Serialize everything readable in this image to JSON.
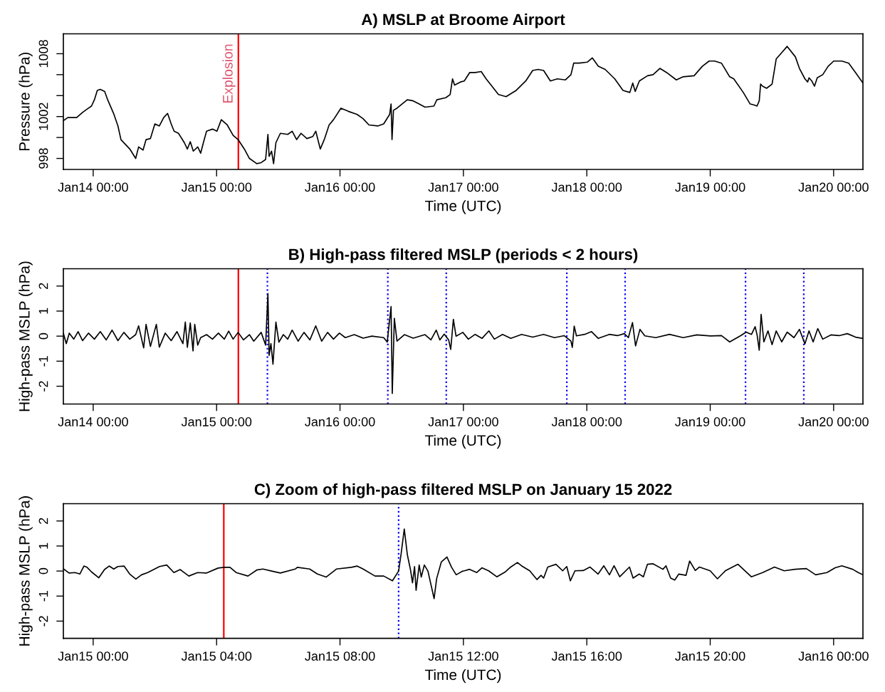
{
  "chart_data": [
    {
      "type": "line",
      "title": "A) MSLP at Broome Airport",
      "xlabel": "Time (UTC)",
      "ylabel": "Pressure (hPa)",
      "color": "#000000",
      "xlim": [
        "2022-01-13T18:12",
        "2022-01-20T05:42"
      ],
      "ylim": [
        996.95,
        1009.9
      ],
      "xticks": [
        {
          "value": "2022-01-14T00:00",
          "label": "Jan14 00:00"
        },
        {
          "value": "2022-01-15T00:00",
          "label": "Jan15 00:00"
        },
        {
          "value": "2022-01-16T00:00",
          "label": "Jan16 00:00"
        },
        {
          "value": "2022-01-17T00:00",
          "label": "Jan17 00:00"
        },
        {
          "value": "2022-01-18T00:00",
          "label": "Jan18 00:00"
        },
        {
          "value": "2022-01-19T00:00",
          "label": "Jan19 00:00"
        },
        {
          "value": "2022-01-20T00:00",
          "label": "Jan20 00:00"
        }
      ],
      "yticks": [
        998,
        {
          "value": 1000,
          "label": null
        },
        1002,
        {
          "value": 1004,
          "label": null
        },
        {
          "value": 1006,
          "label": null
        },
        1008
      ],
      "ref_lines": [
        {
          "axis": "x",
          "value": "2022-01-15T04:14",
          "label": "Explosion",
          "color": "#ff0000"
        }
      ],
      "x": [
        "2022-01-13T18:12",
        "2022-01-13T19:04",
        "2022-01-13T20:47",
        "2022-01-13T21:56",
        "2022-01-13T23:05",
        "2022-01-13T23:40",
        "2022-01-14T00:14",
        "2022-01-14T00:48",
        "2022-01-14T01:23",
        "2022-01-14T02:14",
        "2022-01-14T02:49",
        "2022-01-14T03:58",
        "2022-01-14T04:49",
        "2022-01-14T05:24",
        "2022-01-14T07:07",
        "2022-01-14T08:16",
        "2022-01-14T08:50",
        "2022-01-14T09:42",
        "2022-01-14T10:17",
        "2022-01-14T11:08",
        "2022-01-14T12:00",
        "2022-01-14T12:52",
        "2022-01-14T13:43",
        "2022-01-14T14:28",
        "2022-01-14T15:10",
        "2022-01-14T15:44",
        "2022-01-14T16:35",
        "2022-01-14T17:44",
        "2022-01-14T18:19",
        "2022-01-14T18:53",
        "2022-01-14T19:28",
        "2022-01-14T20:20",
        "2022-01-14T20:54",
        "2022-01-14T21:29",
        "2022-01-14T22:03",
        "2022-01-14T23:12",
        "2022-01-15T00:04",
        "2022-01-15T00:55",
        "2022-01-15T02:04",
        "2022-01-15T03:13",
        "2022-01-15T04:11",
        "2022-01-15T05:31",
        "2022-01-15T06:23",
        "2022-01-15T07:49",
        "2022-01-15T08:40",
        "2022-01-15T09:32",
        "2022-01-15T09:59",
        "2022-01-15T10:13",
        "2022-01-15T10:41",
        "2022-01-15T11:05",
        "2022-01-15T11:32",
        "2022-01-15T12:24",
        "2022-01-15T13:50",
        "2022-01-15T14:42",
        "2022-01-15T15:34",
        "2022-01-15T16:25",
        "2022-01-15T17:34",
        "2022-01-15T18:43",
        "2022-01-15T19:17",
        "2022-01-15T20:10",
        "2022-01-15T21:01",
        "2022-01-15T21:53",
        "2022-01-15T22:44",
        "2022-01-16T00:11",
        "2022-01-16T01:37",
        "2022-01-16T03:20",
        "2022-01-16T04:29",
        "2022-01-16T05:38",
        "2022-01-16T07:21",
        "2022-01-16T08:30",
        "2022-01-16T09:39",
        "2022-01-16T09:56",
        "2022-01-16T10:07",
        "2022-01-16T10:24",
        "2022-01-16T11:05",
        "2022-01-16T13:05",
        "2022-01-16T14:14",
        "2022-01-16T15:23",
        "2022-01-16T16:32",
        "2022-01-16T18:16",
        "2022-01-16T18:50",
        "2022-01-16T20:34",
        "2022-01-16T21:25",
        "2022-01-16T21:53",
        "2022-01-16T22:17",
        "2022-01-16T23:26",
        "2022-01-17T00:10",
        "2022-01-17T01:13",
        "2022-01-17T02:17",
        "2022-01-17T03:28",
        "2022-01-17T04:25",
        "2022-01-17T05:13",
        "2022-01-17T06:49",
        "2022-01-17T08:18",
        "2022-01-17T10:16",
        "2022-01-17T12:08",
        "2022-01-17T13:28",
        "2022-01-17T14:32",
        "2022-01-17T15:36",
        "2022-01-17T16:55",
        "2022-01-17T18:15",
        "2022-01-17T19:51",
        "2022-01-17T20:55",
        "2022-01-17T21:27",
        "2022-01-17T22:31",
        "2022-01-18T00:07",
        "2022-01-18T01:04",
        "2022-01-18T02:14",
        "2022-01-18T03:34",
        "2022-01-18T05:26",
        "2022-01-18T07:02",
        "2022-01-18T08:22",
        "2022-01-18T08:56",
        "2022-01-18T09:25",
        "2022-01-18T10:13",
        "2022-01-18T11:49",
        "2022-01-18T12:53",
        "2022-01-18T14:13",
        "2022-01-18T15:32",
        "2022-01-18T17:25",
        "2022-01-18T18:44",
        "2022-01-18T20:52",
        "2022-01-18T22:28",
        "2022-01-18T23:47",
        "2022-01-19T00:52",
        "2022-01-19T02:11",
        "2022-01-19T03:47",
        "2022-01-19T04:35",
        "2022-01-19T06:26",
        "2022-01-19T07:46",
        "2022-01-19T08:34",
        "2022-01-19T09:06",
        "2022-01-19T09:32",
        "2022-01-19T09:48",
        "2022-01-19T10:10",
        "2022-01-19T10:58",
        "2022-01-19T12:02",
        "2022-01-19T12:50",
        "2022-01-19T13:54",
        "2022-01-19T14:58",
        "2022-01-19T16:34",
        "2022-01-19T17:21",
        "2022-01-19T18:25",
        "2022-01-19T18:57",
        "2022-01-19T19:13",
        "2022-01-19T19:45",
        "2022-01-19T20:17",
        "2022-01-19T20:49",
        "2022-01-19T21:53",
        "2022-01-19T22:56",
        "2022-01-20T00:01",
        "2022-01-20T01:36",
        "2022-01-20T02:56",
        "2022-01-20T04:16",
        "2022-01-20T05:42"
      ],
      "values": [
        1001.6,
        1001.9,
        1001.9,
        1002.4,
        1002.8,
        1003.0,
        1003.6,
        1004.5,
        1004.6,
        1004.4,
        1003.6,
        1002.3,
        1001.1,
        999.8,
        998.9,
        998.0,
        999.1,
        998.8,
        999.8,
        999.9,
        1001.3,
        1001.1,
        1001.9,
        1002.3,
        1001.3,
        1000.6,
        1000.4,
        999.5,
        998.9,
        999.6,
        998.7,
        999.1,
        998.5,
        999.6,
        1000.6,
        1000.8,
        1000.6,
        1001.7,
        1001.2,
        1000.2,
        999.8,
        998.8,
        998.0,
        997.5,
        997.6,
        997.9,
        1000.3,
        998.2,
        998.7,
        997.5,
        999.5,
        1000.4,
        1000.3,
        1000.6,
        999.8,
        1000.4,
        999.9,
        1000.1,
        1000.6,
        998.9,
        999.9,
        1001.2,
        1001.7,
        1002.8,
        1002.5,
        1002.2,
        1001.8,
        1001.2,
        1001.1,
        1001.3,
        1002.2,
        1003.2,
        999.8,
        1002.6,
        1002.8,
        1003.6,
        1003.5,
        1003.2,
        1002.9,
        1003.0,
        1003.6,
        1003.8,
        1004.1,
        1005.6,
        1005.0,
        1005.3,
        1005.4,
        1006.2,
        1006.2,
        1006.3,
        1005.6,
        1005.1,
        1004.1,
        1003.9,
        1004.5,
        1005.4,
        1006.4,
        1006.5,
        1006.4,
        1005.4,
        1005.6,
        1005.5,
        1006.0,
        1007.1,
        1007.1,
        1007.2,
        1007.6,
        1006.8,
        1006.5,
        1005.6,
        1004.5,
        1004.3,
        1005.2,
        1004.4,
        1005.4,
        1005.9,
        1006.0,
        1006.6,
        1006.2,
        1005.5,
        1005.8,
        1005.9,
        1006.8,
        1007.3,
        1007.3,
        1007.1,
        1005.8,
        1005.6,
        1004.3,
        1003.2,
        1003.1,
        1003.0,
        1003.5,
        1005.1,
        1004.9,
        1004.7,
        1005.1,
        1007.5,
        1008.1,
        1008.7,
        1007.7,
        1006.6,
        1005.6,
        1005.3,
        1005.7,
        1005.4,
        1004.9,
        1005.7,
        1006.0,
        1006.8,
        1007.3,
        1007.3,
        1007.1,
        1006.2,
        1005.2
      ]
    },
    {
      "type": "line",
      "title": "B) High-pass filtered MSLP (periods < 2 hours)",
      "xlabel": "Time (UTC)",
      "ylabel": "High-pass MSLP (hPa)",
      "color": "#000000",
      "xlim": [
        "2022-01-13T18:12",
        "2022-01-20T05:42"
      ],
      "ylim": [
        -2.71,
        2.69
      ],
      "xticks": [
        {
          "value": "2022-01-14T00:00",
          "label": "Jan14 00:00"
        },
        {
          "value": "2022-01-15T00:00",
          "label": "Jan15 00:00"
        },
        {
          "value": "2022-01-16T00:00",
          "label": "Jan16 00:00"
        },
        {
          "value": "2022-01-17T00:00",
          "label": "Jan17 00:00"
        },
        {
          "value": "2022-01-18T00:00",
          "label": "Jan18 00:00"
        },
        {
          "value": "2022-01-19T00:00",
          "label": "Jan19 00:00"
        },
        {
          "value": "2022-01-20T00:00",
          "label": "Jan20 00:00"
        }
      ],
      "yticks": [
        -2,
        -1,
        0,
        1,
        2
      ],
      "ref_lines": [
        {
          "axis": "x",
          "value": "2022-01-15T04:14",
          "color": "#ff0000"
        },
        {
          "axis": "x",
          "value": "2022-01-15T09:53",
          "color": "#0000ff",
          "line_style": "dotted"
        },
        {
          "axis": "x",
          "value": "2022-01-16T09:18",
          "color": "#0000ff",
          "line_style": "dotted"
        },
        {
          "axis": "x",
          "value": "2022-01-16T20:40",
          "color": "#0000ff",
          "line_style": "dotted"
        },
        {
          "axis": "x",
          "value": "2022-01-17T20:07",
          "color": "#0000ff",
          "line_style": "dotted"
        },
        {
          "axis": "x",
          "value": "2022-01-18T07:27",
          "color": "#0000ff",
          "line_style": "dotted"
        },
        {
          "axis": "x",
          "value": "2022-01-19T06:52",
          "color": "#0000ff",
          "line_style": "dotted"
        },
        {
          "axis": "x",
          "value": "2022-01-19T18:12",
          "color": "#0000ff",
          "line_style": "dotted"
        }
      ],
      "x": [
        "2022-01-13T18:12",
        "2022-01-13T18:46",
        "2022-01-13T19:21",
        "2022-01-13T20:13",
        "2022-01-13T21:04",
        "2022-01-13T21:56",
        "2022-01-13T23:05",
        "2022-01-14T00:14",
        "2022-01-14T01:23",
        "2022-01-14T02:32",
        "2022-01-14T03:40",
        "2022-01-14T04:49",
        "2022-01-14T05:58",
        "2022-01-14T07:07",
        "2022-01-14T08:16",
        "2022-01-14T08:50",
        "2022-01-14T09:49",
        "2022-01-14T10:17",
        "2022-01-14T11:08",
        "2022-01-14T12:17",
        "2022-01-14T12:52",
        "2022-01-14T14:01",
        "2022-01-14T15:10",
        "2022-01-14T16:18",
        "2022-01-14T17:27",
        "2022-01-14T17:55",
        "2022-01-14T18:19",
        "2022-01-14T18:53",
        "2022-01-14T19:25",
        "2022-01-14T19:45",
        "2022-01-14T20:20",
        "2022-01-14T20:54",
        "2022-01-14T22:03",
        "2022-01-14T23:12",
        "2022-01-15T00:21",
        "2022-01-15T01:30",
        "2022-01-15T02:21",
        "2022-01-15T03:13",
        "2022-01-15T04:11",
        "2022-01-15T05:14",
        "2022-01-15T06:23",
        "2022-01-15T07:14",
        "2022-01-15T08:40",
        "2022-01-15T09:32",
        "2022-01-15T09:59",
        "2022-01-15T10:13",
        "2022-01-15T10:34",
        "2022-01-15T10:58",
        "2022-01-15T11:32",
        "2022-01-15T12:07",
        "2022-01-15T12:59",
        "2022-01-15T13:50",
        "2022-01-15T14:42",
        "2022-01-15T15:51",
        "2022-01-15T17:00",
        "2022-01-15T18:09",
        "2022-01-15T19:17",
        "2022-01-15T20:26",
        "2022-01-15T21:35",
        "2022-01-15T22:44",
        "2022-01-15T23:53",
        "2022-01-16T01:02",
        "2022-01-16T02:46",
        "2022-01-16T04:29",
        "2022-01-16T06:12",
        "2022-01-16T08:30",
        "2022-01-16T09:11",
        "2022-01-16T09:56",
        "2022-01-16T10:10",
        "2022-01-16T10:34",
        "2022-01-16T11:05",
        "2022-01-16T12:31",
        "2022-01-16T14:14",
        "2022-01-16T16:32",
        "2022-01-16T17:41",
        "2022-01-16T18:43",
        "2022-01-16T19:25",
        "2022-01-16T20:16",
        "2022-01-16T21:08",
        "2022-01-16T21:32",
        "2022-01-16T22:03",
        "2022-01-16T22:34",
        "2022-01-16T23:53",
        "2022-01-17T00:58",
        "2022-01-17T02:17",
        "2022-01-17T03:37",
        "2022-01-17T04:57",
        "2022-01-17T06:01",
        "2022-01-17T07:37",
        "2022-01-17T09:13",
        "2022-01-17T11:20",
        "2022-01-17T13:28",
        "2022-01-17T15:35",
        "2022-01-17T17:43",
        "2022-01-17T19:35",
        "2022-01-17T20:55",
        "2022-01-17T21:11",
        "2022-01-17T21:33",
        "2022-01-17T21:59",
        "2022-01-17T23:35",
        "2022-01-18T00:55",
        "2022-01-18T02:14",
        "2022-01-18T04:22",
        "2022-01-18T05:58",
        "2022-01-18T07:17",
        "2022-01-18T08:05",
        "2022-01-18T08:53",
        "2022-01-18T09:29",
        "2022-01-18T10:20",
        "2022-01-18T11:17",
        "2022-01-18T13:25",
        "2022-01-18T16:04",
        "2022-01-18T18:44",
        "2022-01-18T21:24",
        "2022-01-19T00:04",
        "2022-01-19T02:11",
        "2022-01-19T03:47",
        "2022-01-19T05:55",
        "2022-01-19T06:59",
        "2022-01-19T08:02",
        "2022-01-19T08:44",
        "2022-01-19T09:07",
        "2022-01-19T09:32",
        "2022-01-19T09:54",
        "2022-01-19T10:26",
        "2022-01-19T11:14",
        "2022-01-19T12:02",
        "2022-01-19T12:50",
        "2022-01-19T13:54",
        "2022-01-19T14:58",
        "2022-01-19T16:17",
        "2022-01-19T17:21",
        "2022-01-19T18:25",
        "2022-01-19T19:13",
        "2022-01-19T20:01",
        "2022-01-19T20:55",
        "2022-01-19T21:53",
        "2022-01-19T23:28",
        "2022-01-20T01:04",
        "2022-01-20T02:40",
        "2022-01-20T04:16",
        "2022-01-20T05:42"
      ],
      "values": [
        0.12,
        -0.3,
        0.12,
        -0.12,
        0.18,
        -0.18,
        0.12,
        -0.12,
        0.18,
        -0.15,
        0.24,
        -0.18,
        0.15,
        -0.12,
        0.06,
        0.41,
        -0.47,
        0.47,
        -0.41,
        0.47,
        -0.44,
        0.12,
        -0.18,
        0.18,
        -0.3,
        0.56,
        -0.45,
        0.53,
        -0.59,
        0.47,
        -0.36,
        -0.06,
        0.06,
        -0.12,
        0.12,
        -0.12,
        0.2,
        -0.12,
        0.15,
        -0.15,
        0.06,
        -0.2,
        0.15,
        -0.36,
        1.7,
        -0.77,
        -0.3,
        -1.12,
        0.56,
        -0.24,
        0.06,
        -0.12,
        0.24,
        -0.2,
        0.15,
        -0.15,
        0.41,
        -0.2,
        0.15,
        -0.12,
        0.12,
        -0.06,
        0.06,
        -0.08,
        0.0,
        -0.06,
        -0.24,
        1.18,
        -2.29,
        0.71,
        -0.2,
        0.06,
        -0.08,
        0.06,
        -0.15,
        0.24,
        -0.15,
        0.08,
        -0.15,
        -0.53,
        0.67,
        0.0,
        0.15,
        -0.12,
        0.07,
        -0.09,
        0.21,
        -0.12,
        0.07,
        -0.09,
        0.07,
        -0.04,
        0.07,
        -0.06,
        0.02,
        -0.2,
        -0.45,
        0.4,
        0.01,
        0.07,
        0.18,
        -0.09,
        0.07,
        0.02,
        0.1,
        -0.06,
        0.54,
        -0.39,
        0.27,
        0.01,
        -0.06,
        0.07,
        -0.06,
        0.05,
        0.01,
        0.02,
        -0.23,
        0.02,
        0.16,
        0.07,
        0.38,
        0.05,
        -0.56,
        0.87,
        -0.23,
        0.21,
        -0.34,
        0.21,
        -0.23,
        0.16,
        -0.06,
        0.27,
        -0.31,
        0.21,
        -0.23,
        0.3,
        -0.12,
        0.05,
        0.02,
        0.1,
        -0.04,
        -0.09
      ]
    },
    {
      "type": "line",
      "title": "C) Zoom of high-pass filtered MSLP on January 15 2022",
      "xlabel": "Time (UTC)",
      "ylabel": "High-pass MSLP (hPa)",
      "color": "#000000",
      "xlim": [
        "2022-01-14T23:02",
        "2022-01-16T00:57"
      ],
      "ylim": [
        -2.69,
        2.69
      ],
      "xticks": [
        {
          "value": "2022-01-15T00:00",
          "label": "Jan15 00:00"
        },
        {
          "value": "2022-01-15T04:00",
          "label": "Jan15 04:00"
        },
        {
          "value": "2022-01-15T08:00",
          "label": "Jan15 08:00"
        },
        {
          "value": "2022-01-15T12:00",
          "label": "Jan15 12:00"
        },
        {
          "value": "2022-01-15T16:00",
          "label": "Jan15 16:00"
        },
        {
          "value": "2022-01-15T20:00",
          "label": "Jan15 20:00"
        },
        {
          "value": "2022-01-16T00:00",
          "label": "Jan16 00:00"
        }
      ],
      "yticks": [
        -2,
        -1,
        0,
        1,
        2
      ],
      "ref_lines": [
        {
          "axis": "x",
          "value": "2022-01-15T04:14",
          "color": "#ff0000"
        },
        {
          "axis": "x",
          "value": "2022-01-15T09:54",
          "color": "#0000ff",
          "line_style": "dotted"
        }
      ],
      "x": [
        "2022-01-14T23:02",
        "2022-01-14T23:13",
        "2022-01-14T23:25",
        "2022-01-14T23:34",
        "2022-01-14T23:42",
        "2022-01-14T23:48",
        "2022-01-14T23:57",
        "2022-01-15T00:11",
        "2022-01-15T00:22",
        "2022-01-15T00:31",
        "2022-01-15T00:40",
        "2022-01-15T00:48",
        "2022-01-15T01:00",
        "2022-01-15T01:11",
        "2022-01-15T01:23",
        "2022-01-15T01:34",
        "2022-01-15T01:46",
        "2022-01-15T02:09",
        "2022-01-15T02:23",
        "2022-01-15T02:37",
        "2022-01-15T02:49",
        "2022-01-15T03:06",
        "2022-01-15T03:23",
        "2022-01-15T03:40",
        "2022-01-15T04:03",
        "2022-01-15T04:15",
        "2022-01-15T04:26",
        "2022-01-15T04:38",
        "2022-01-15T05:01",
        "2022-01-15T05:18",
        "2022-01-15T05:30",
        "2022-01-15T05:47",
        "2022-01-15T06:04",
        "2022-01-15T06:33",
        "2022-01-15T06:37",
        "2022-01-15T07:01",
        "2022-01-15T07:16",
        "2022-01-15T07:33",
        "2022-01-15T07:53",
        "2022-01-15T08:22",
        "2022-01-15T08:33",
        "2022-01-15T08:45",
        "2022-01-15T09:08",
        "2022-01-15T09:25",
        "2022-01-15T09:42",
        "2022-01-15T09:54",
        "2022-01-15T09:59",
        "2022-01-15T10:05",
        "2022-01-15T10:11",
        "2022-01-15T10:17",
        "2022-01-15T10:21",
        "2022-01-15T10:25",
        "2022-01-15T10:28",
        "2022-01-15T10:34",
        "2022-01-15T10:38",
        "2022-01-15T10:44",
        "2022-01-15T10:51",
        "2022-01-15T11:03",
        "2022-01-15T11:08",
        "2022-01-15T11:17",
        "2022-01-15T11:28",
        "2022-01-15T11:37",
        "2022-01-15T11:46",
        "2022-01-15T11:59",
        "2022-01-15T12:02",
        "2022-01-15T12:12",
        "2022-01-15T12:26",
        "2022-01-15T12:36",
        "2022-01-15T12:49",
        "2022-01-15T13:05",
        "2022-01-15T13:21",
        "2022-01-15T13:32",
        "2022-01-15T13:45",
        "2022-01-15T13:53",
        "2022-01-15T14:09",
        "2022-01-15T14:23",
        "2022-01-15T14:31",
        "2022-01-15T14:36",
        "2022-01-15T14:44",
        "2022-01-15T15:00",
        "2022-01-15T15:13",
        "2022-01-15T15:21",
        "2022-01-15T15:28",
        "2022-01-15T15:37",
        "2022-01-15T15:53",
        "2022-01-15T16:06",
        "2022-01-15T16:22",
        "2022-01-15T16:33",
        "2022-01-15T16:44",
        "2022-01-15T16:53",
        "2022-01-15T17:04",
        "2022-01-15T17:23",
        "2022-01-15T17:30",
        "2022-01-15T17:42",
        "2022-01-15T17:50",
        "2022-01-15T17:58",
        "2022-01-15T18:09",
        "2022-01-15T18:28",
        "2022-01-15T18:34",
        "2022-01-15T18:43",
        "2022-01-15T18:51",
        "2022-01-15T18:59",
        "2022-01-15T19:13",
        "2022-01-15T19:20",
        "2022-01-15T19:31",
        "2022-01-15T19:39",
        "2022-01-15T20:00",
        "2022-01-15T20:14",
        "2022-01-15T20:30",
        "2022-01-15T20:54",
        "2022-01-15T21:20",
        "2022-01-15T21:42",
        "2022-01-15T22:05",
        "2022-01-15T22:24",
        "2022-01-15T22:45",
        "2022-01-15T23:07",
        "2022-01-15T23:25",
        "2022-01-15T23:47",
        "2022-01-16T00:03",
        "2022-01-16T00:16",
        "2022-01-16T00:37",
        "2022-01-16T00:48",
        "2022-01-16T00:57"
      ],
      "values": [
        0.09,
        -0.08,
        -0.06,
        -0.12,
        0.2,
        0.15,
        -0.04,
        -0.27,
        0.06,
        0.2,
        0.08,
        0.18,
        0.2,
        -0.12,
        -0.32,
        -0.15,
        -0.06,
        0.18,
        0.24,
        -0.06,
        0.06,
        -0.2,
        -0.06,
        -0.08,
        0.12,
        0.15,
        0.15,
        -0.06,
        -0.2,
        0.04,
        0.08,
        0.0,
        -0.08,
        0.08,
        0.15,
        0.08,
        -0.12,
        -0.24,
        0.08,
        0.15,
        0.2,
        0.08,
        -0.2,
        -0.2,
        -0.39,
        0.0,
        0.71,
        1.68,
        0.65,
        0.06,
        -0.47,
        0.18,
        -0.77,
        0.24,
        -0.24,
        0.24,
        0.0,
        -1.1,
        -0.3,
        0.36,
        0.56,
        0.15,
        -0.15,
        0.0,
        0.01,
        0.07,
        -0.06,
        0.13,
        0.01,
        -0.23,
        -0.04,
        0.16,
        0.34,
        0.21,
        0.01,
        -0.34,
        -0.17,
        -0.28,
        0.16,
        0.27,
        0.01,
        0.18,
        -0.39,
        0.01,
        0.02,
        0.16,
        -0.12,
        0.21,
        -0.15,
        0.21,
        -0.23,
        0.16,
        -0.28,
        -0.12,
        -0.23,
        0.27,
        0.29,
        0.07,
        0.21,
        -0.28,
        -0.36,
        -0.12,
        -0.17,
        0.4,
        0.02,
        0.16,
        0.01,
        -0.31,
        0.02,
        0.27,
        -0.23,
        -0.06,
        0.16,
        0.01,
        0.07,
        0.1,
        -0.15,
        -0.06,
        0.13,
        0.21,
        0.07,
        -0.06,
        -0.15
      ]
    }
  ]
}
